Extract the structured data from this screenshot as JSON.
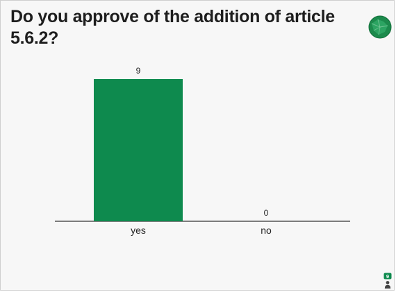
{
  "slide": {
    "question": "Do you approve of the addition of article 5.6.2?",
    "logo_icon": "globe-icon",
    "participants_icon": "person-icon",
    "participants_count": "9",
    "accent_color": "#0e8a4e",
    "logo_color": "#1c8a4c"
  },
  "chart_data": {
    "type": "bar",
    "categories": [
      "yes",
      "no"
    ],
    "values": [
      9,
      0
    ],
    "data_labels": [
      "9",
      "0"
    ],
    "ylim": [
      0,
      9
    ],
    "grid": false,
    "bar_color": "#0e8a4e",
    "axis_color": "#333333"
  }
}
